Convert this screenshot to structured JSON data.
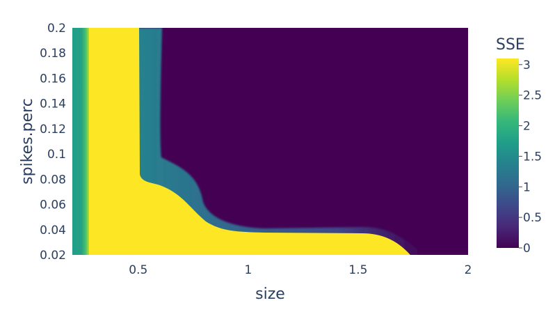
{
  "chart_data": {
    "type": "heatmap",
    "xlabel": "size",
    "ylabel": "spikes.perc",
    "xlim": [
      0.2,
      2
    ],
    "ylim": [
      0.02,
      0.2
    ],
    "x_ticks": [
      "0.5",
      "1",
      "1.5",
      "2"
    ],
    "x_tick_values": [
      0.5,
      1,
      1.5,
      2
    ],
    "y_ticks": [
      "0.02",
      "0.04",
      "0.06",
      "0.08",
      "0.1",
      "0.12",
      "0.14",
      "0.16",
      "0.18",
      "0.2"
    ],
    "y_tick_values": [
      0.02,
      0.04,
      0.06,
      0.08,
      0.1,
      0.12,
      0.14,
      0.16,
      0.18,
      0.2
    ],
    "colorbar": {
      "title": "SSE",
      "range": [
        0,
        3.1
      ],
      "ticks": [
        "0",
        "0.5",
        "1",
        "1.5",
        "2",
        "2.5",
        "3"
      ],
      "tick_values": [
        0,
        0.5,
        1,
        1.5,
        2,
        2.5,
        3
      ],
      "colorscale": [
        "#440154",
        "#482878",
        "#3e4989",
        "#31688e",
        "#26828e",
        "#1f9e89",
        "#35b779",
        "#6ece58",
        "#b5de2b",
        "#fde725"
      ]
    },
    "regions": [
      {
        "name": "high-sse-left-strip",
        "x": [
          0.2,
          0.27
        ],
        "y": [
          0.02,
          0.2
        ],
        "sse": [
          1.4,
          1.9
        ]
      },
      {
        "name": "yellow-vertical-band",
        "x": [
          0.27,
          0.5
        ],
        "y": [
          0.02,
          0.2
        ],
        "sse": 3.1
      },
      {
        "name": "transition-edge",
        "x": [
          0.5,
          0.6
        ],
        "y": [
          0.08,
          0.2
        ],
        "sse": [
          0.3,
          2.0
        ]
      },
      {
        "name": "yellow-lower-region",
        "x": [
          0.27,
          1.75
        ],
        "y": [
          0.02,
          0.038
        ],
        "sse": 3.1
      },
      {
        "name": "dark-low-sse-region",
        "x": [
          0.6,
          2
        ],
        "y": [
          0.04,
          0.2
        ],
        "sse": 0
      }
    ]
  }
}
